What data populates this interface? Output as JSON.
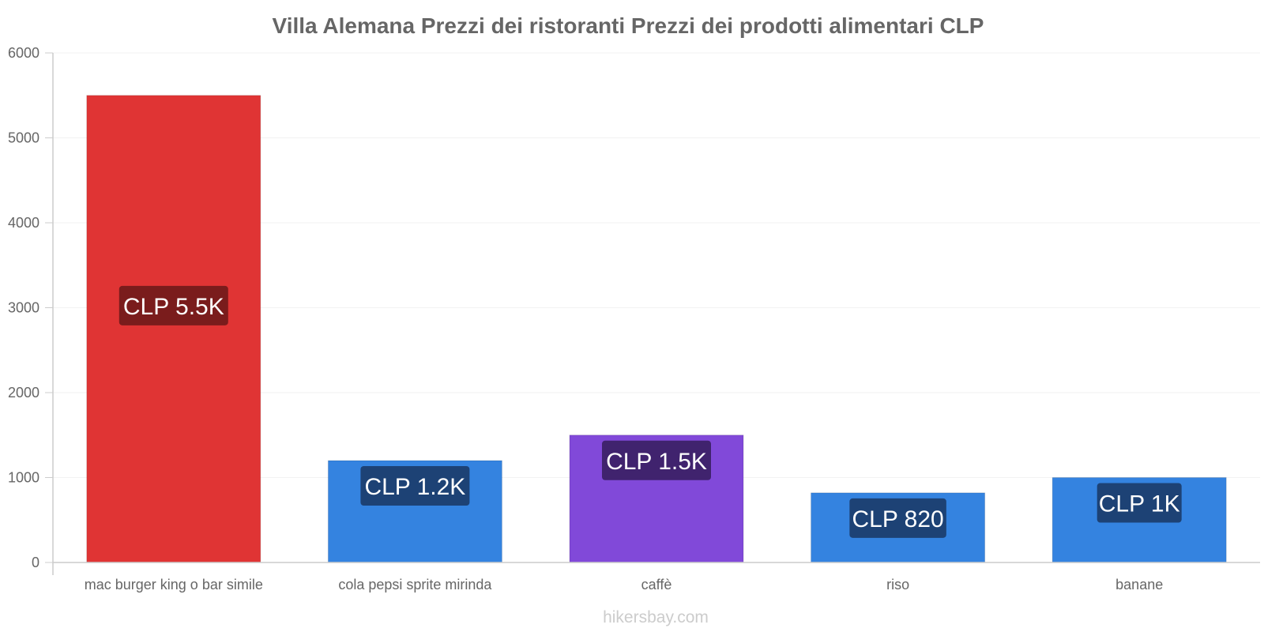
{
  "chart_data": {
    "type": "bar",
    "title": "Villa Alemana Prezzi dei ristoranti Prezzi dei prodotti alimentari CLP",
    "categories": [
      "mac burger king o bar simile",
      "cola pepsi sprite mirinda",
      "caffè",
      "riso",
      "banane"
    ],
    "values": [
      5500,
      1200,
      1500,
      820,
      1000
    ],
    "data_labels": [
      "CLP 5.5K",
      "CLP 1.2K",
      "CLP 1.5K",
      "CLP 820",
      "CLP 1K"
    ],
    "bar_colors": [
      "#e03434",
      "#3483e0",
      "#8149d9",
      "#3483e0",
      "#3483e0"
    ],
    "label_box_colors": [
      "#7a1c1c",
      "#1d4275",
      "#40236e",
      "#1d4275",
      "#1d4275"
    ],
    "yticks": [
      "0",
      "1000",
      "2000",
      "3000",
      "4000",
      "5000",
      "6000"
    ],
    "ylim": [
      0,
      6000
    ],
    "xlabel": "",
    "ylabel": "",
    "grid": true
  },
  "watermark": "hikersbay.com"
}
